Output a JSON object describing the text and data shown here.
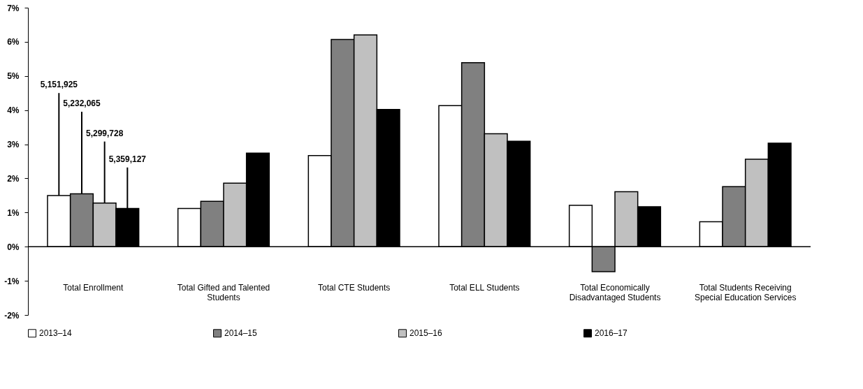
{
  "chart_data": {
    "type": "bar",
    "categories": [
      "Total Enrollment",
      "Total Gifted and Talented Students",
      "Total CTE Students",
      "Total ELL Students",
      "Total Economically Disadvantaged Students",
      "Total Students Receiving Special Education Services"
    ],
    "series": [
      {
        "name": "2013–14",
        "color": "#ffffff",
        "values": [
          1.5,
          1.12,
          2.67,
          4.13,
          1.21,
          0.73
        ]
      },
      {
        "name": "2014–15",
        "color": "#808080",
        "values": [
          1.55,
          1.33,
          6.07,
          5.39,
          -0.73,
          1.76
        ]
      },
      {
        "name": "2015–16",
        "color": "#c0c0c0",
        "values": [
          1.28,
          1.86,
          6.2,
          3.31,
          1.61,
          2.56
        ]
      },
      {
        "name": "2016–17",
        "color": "#000000",
        "values": [
          1.12,
          2.74,
          4.02,
          3.09,
          1.17,
          3.03
        ]
      }
    ],
    "ylim": [
      -2,
      7
    ],
    "yticks": [
      {
        "value": -2,
        "label": "-2%"
      },
      {
        "value": -1,
        "label": "-1%"
      },
      {
        "value": 0,
        "label": "0%"
      },
      {
        "value": 1,
        "label": "1%"
      },
      {
        "value": 2,
        "label": "2%"
      },
      {
        "value": 3,
        "label": "3%"
      },
      {
        "value": 4,
        "label": "4%"
      },
      {
        "value": 5,
        "label": "5%"
      },
      {
        "value": 6,
        "label": "6%"
      },
      {
        "value": 7,
        "label": "7%"
      }
    ],
    "annotations": [
      {
        "text": "5,151,925",
        "y": 1.5
      },
      {
        "text": "5,232,065",
        "y": 1.55
      },
      {
        "text": "5,299,728",
        "y": 1.28
      },
      {
        "text": "5,359,127",
        "y": 1.12
      }
    ],
    "ref_lines": [
      {
        "axis": "y",
        "value": 0,
        "color": "#000000",
        "line_style": "solid"
      }
    ],
    "grid": false,
    "legend": "bottom"
  }
}
